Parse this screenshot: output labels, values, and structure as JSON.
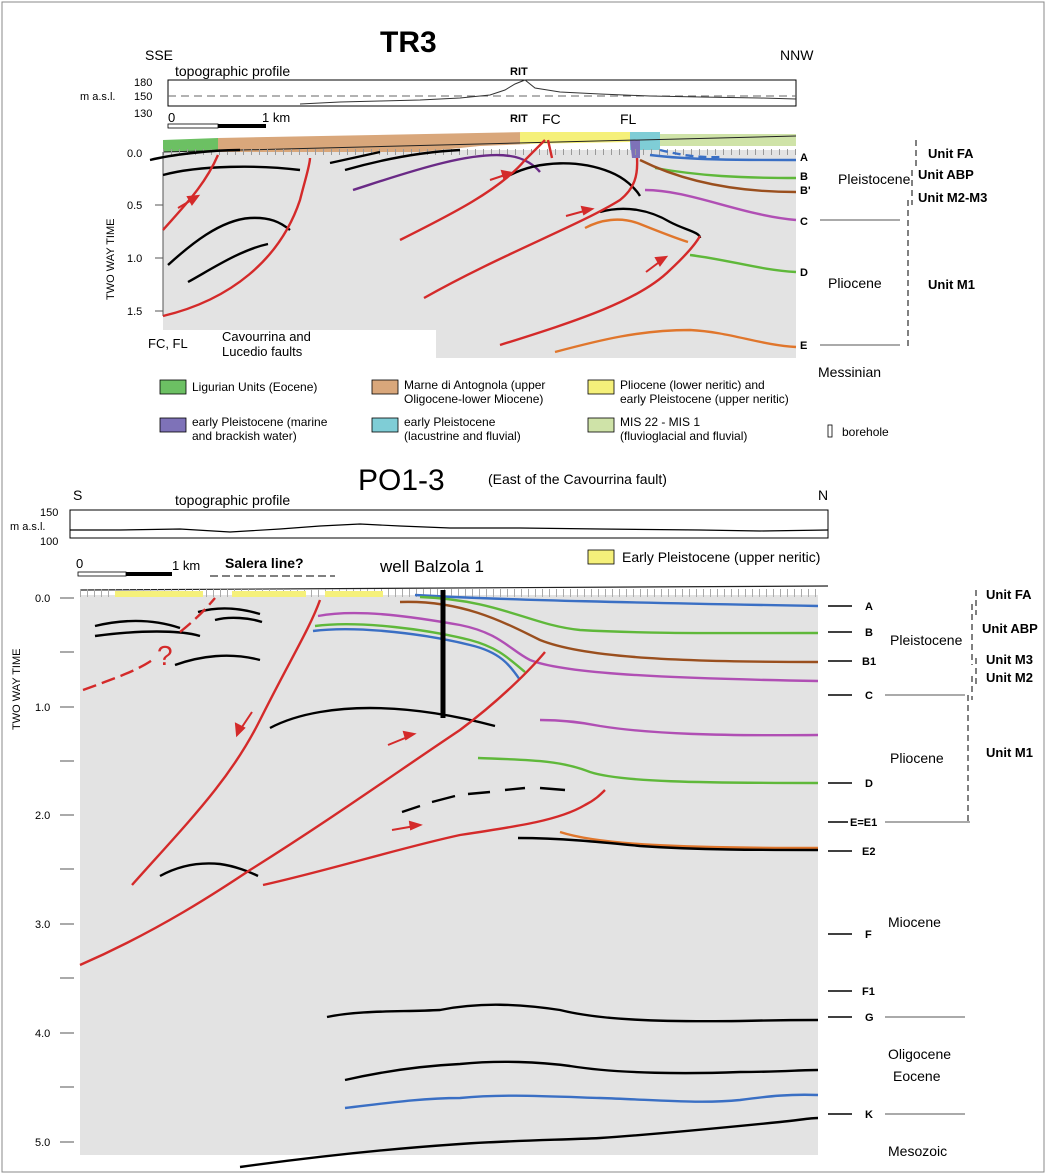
{
  "tr3": {
    "title": "TR3",
    "left_dir": "SSE",
    "right_dir": "NNW",
    "topo_label": "topographic profile",
    "masl": "m a.s.l.",
    "topo_ticks": [
      "180",
      "150",
      "130"
    ],
    "rit_topo": "RIT",
    "rit_section": "RIT",
    "fc": "FC",
    "fl": "FL",
    "scale_zero": "0",
    "scale_km": "1 km",
    "axis_label": "TWO WAY TIME",
    "yticks": [
      "0.0",
      "0.5",
      "1.0",
      "1.5"
    ],
    "horizons": [
      "A",
      "B",
      "B'",
      "C",
      "D",
      "E"
    ],
    "epochs": [
      "Pleistocene",
      "Pliocene",
      "Messinian"
    ],
    "units": [
      "Unit FA",
      "Unit ABP",
      "Unit M2-M3",
      "Unit M1"
    ],
    "faults_note_1": "FC, FL",
    "faults_note_2a": "Cavourrina and",
    "faults_note_2b": "Lucedio faults"
  },
  "legend": {
    "items": [
      {
        "color": "#6cc063",
        "l1": "Ligurian Units (Eocene)",
        "l2": ""
      },
      {
        "color": "#d9a77b",
        "l1": "Marne di Antognola (upper",
        "l2": "Oligocene-lower Miocene)"
      },
      {
        "color": "#f5f07a",
        "l1": "Pliocene (lower neritic) and",
        "l2": "early Pleistocene (upper neritic)"
      },
      {
        "color": "#7e72b8",
        "l1": "early Pleistocene (marine",
        "l2": "and brackish water)"
      },
      {
        "color": "#7fcdd6",
        "l1": "early Pleistocene",
        "l2": "(lacustrine and fluvial)"
      },
      {
        "color": "#cfe3a8",
        "l1": "MIS 22 - MIS 1",
        "l2": "(fluvioglacial and fluvial)"
      }
    ],
    "borehole": "borehole"
  },
  "po": {
    "title": "PO1-3",
    "subtitle": "(East of the Cavourrina fault)",
    "left_dir": "S",
    "right_dir": "N",
    "topo_label": "topographic profile",
    "masl": "m a.s.l.",
    "topo_ticks": [
      "150",
      "100"
    ],
    "scale_zero": "0",
    "scale_km": "1 km",
    "salera": "Salera line?",
    "well": "well Balzola 1",
    "legend_label": "Early Pleistocene (upper neritic)",
    "axis_label": "TWO WAY TIME",
    "yticks": [
      "0.0",
      "1.0",
      "2.0",
      "3.0",
      "4.0",
      "5.0"
    ],
    "horizons": [
      "A",
      "B",
      "B1",
      "C",
      "D",
      "E=E1",
      "E2",
      "F",
      "F1",
      "G",
      "K"
    ],
    "epochs": [
      "Pleistocene",
      "Pliocene",
      "Miocene",
      "Oligocene",
      "Eocene",
      "Mesozoic"
    ],
    "units": [
      "Unit FA",
      "Unit ABP",
      "Unit M3",
      "Unit M2",
      "Unit M1"
    ],
    "question": "?"
  },
  "colors": {
    "fault": "#d42a2a",
    "blue": "#3a6fc4",
    "green": "#5fb83a",
    "brown": "#9a4f1e",
    "magenta": "#b04fb4",
    "orange": "#e0762c",
    "purple": "#6a2a86",
    "section_bg": "#e3e3e3"
  }
}
